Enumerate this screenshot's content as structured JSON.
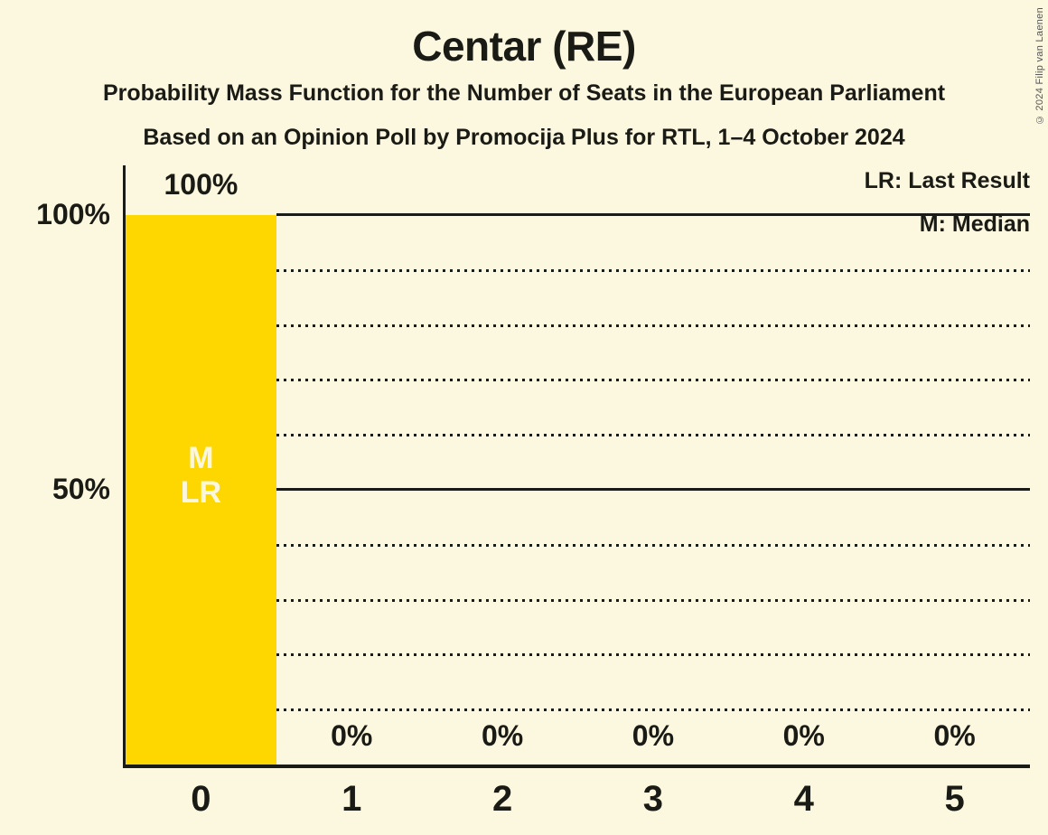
{
  "chart": {
    "title": "Centar (RE)",
    "subtitle_line1": "Probability Mass Function for the Number of Seats in the European Parliament",
    "subtitle_line2": "Based on an Opinion Poll by Promocija Plus for RTL, 1–4 October 2024",
    "copyright": "© 2024 Filip van Laenen",
    "legend": {
      "lr": "LR: Last Result",
      "m": "M: Median"
    }
  },
  "chart_data": {
    "type": "bar",
    "title": "Centar (RE)",
    "subtitle": "Probability Mass Function for the Number of Seats in the European Parliament",
    "source_line": "Based on an Opinion Poll by Promocija Plus for RTL, 1–4 October 2024",
    "categories": [
      "0",
      "1",
      "2",
      "3",
      "4",
      "5"
    ],
    "values": [
      100,
      0,
      0,
      0,
      0,
      0
    ],
    "bar_value_labels": [
      "100%",
      "0%",
      "0%",
      "0%",
      "0%",
      "0%"
    ],
    "ylim": [
      0,
      100
    ],
    "yticks": [
      {
        "value": 100,
        "label": "100%"
      },
      {
        "value": 50,
        "label": "50%"
      }
    ],
    "gridlines": {
      "solid": [
        100,
        50
      ],
      "dotted": [
        90,
        80,
        70,
        60,
        40,
        30,
        20,
        10
      ]
    },
    "bar_annotations": [
      {
        "bar": 0,
        "lines": [
          "M",
          "LR"
        ]
      }
    ],
    "legend_entries": [
      "LR: Last Result",
      "M: Median"
    ],
    "legend_position": "top-right",
    "grid": "dotted-horizontal",
    "colors": {
      "bar": "#FFD700",
      "background": "#FCF7DF",
      "text": "#1B1B16",
      "annotation_text": "#FBF6DE",
      "copyright_text": "#555555"
    }
  }
}
